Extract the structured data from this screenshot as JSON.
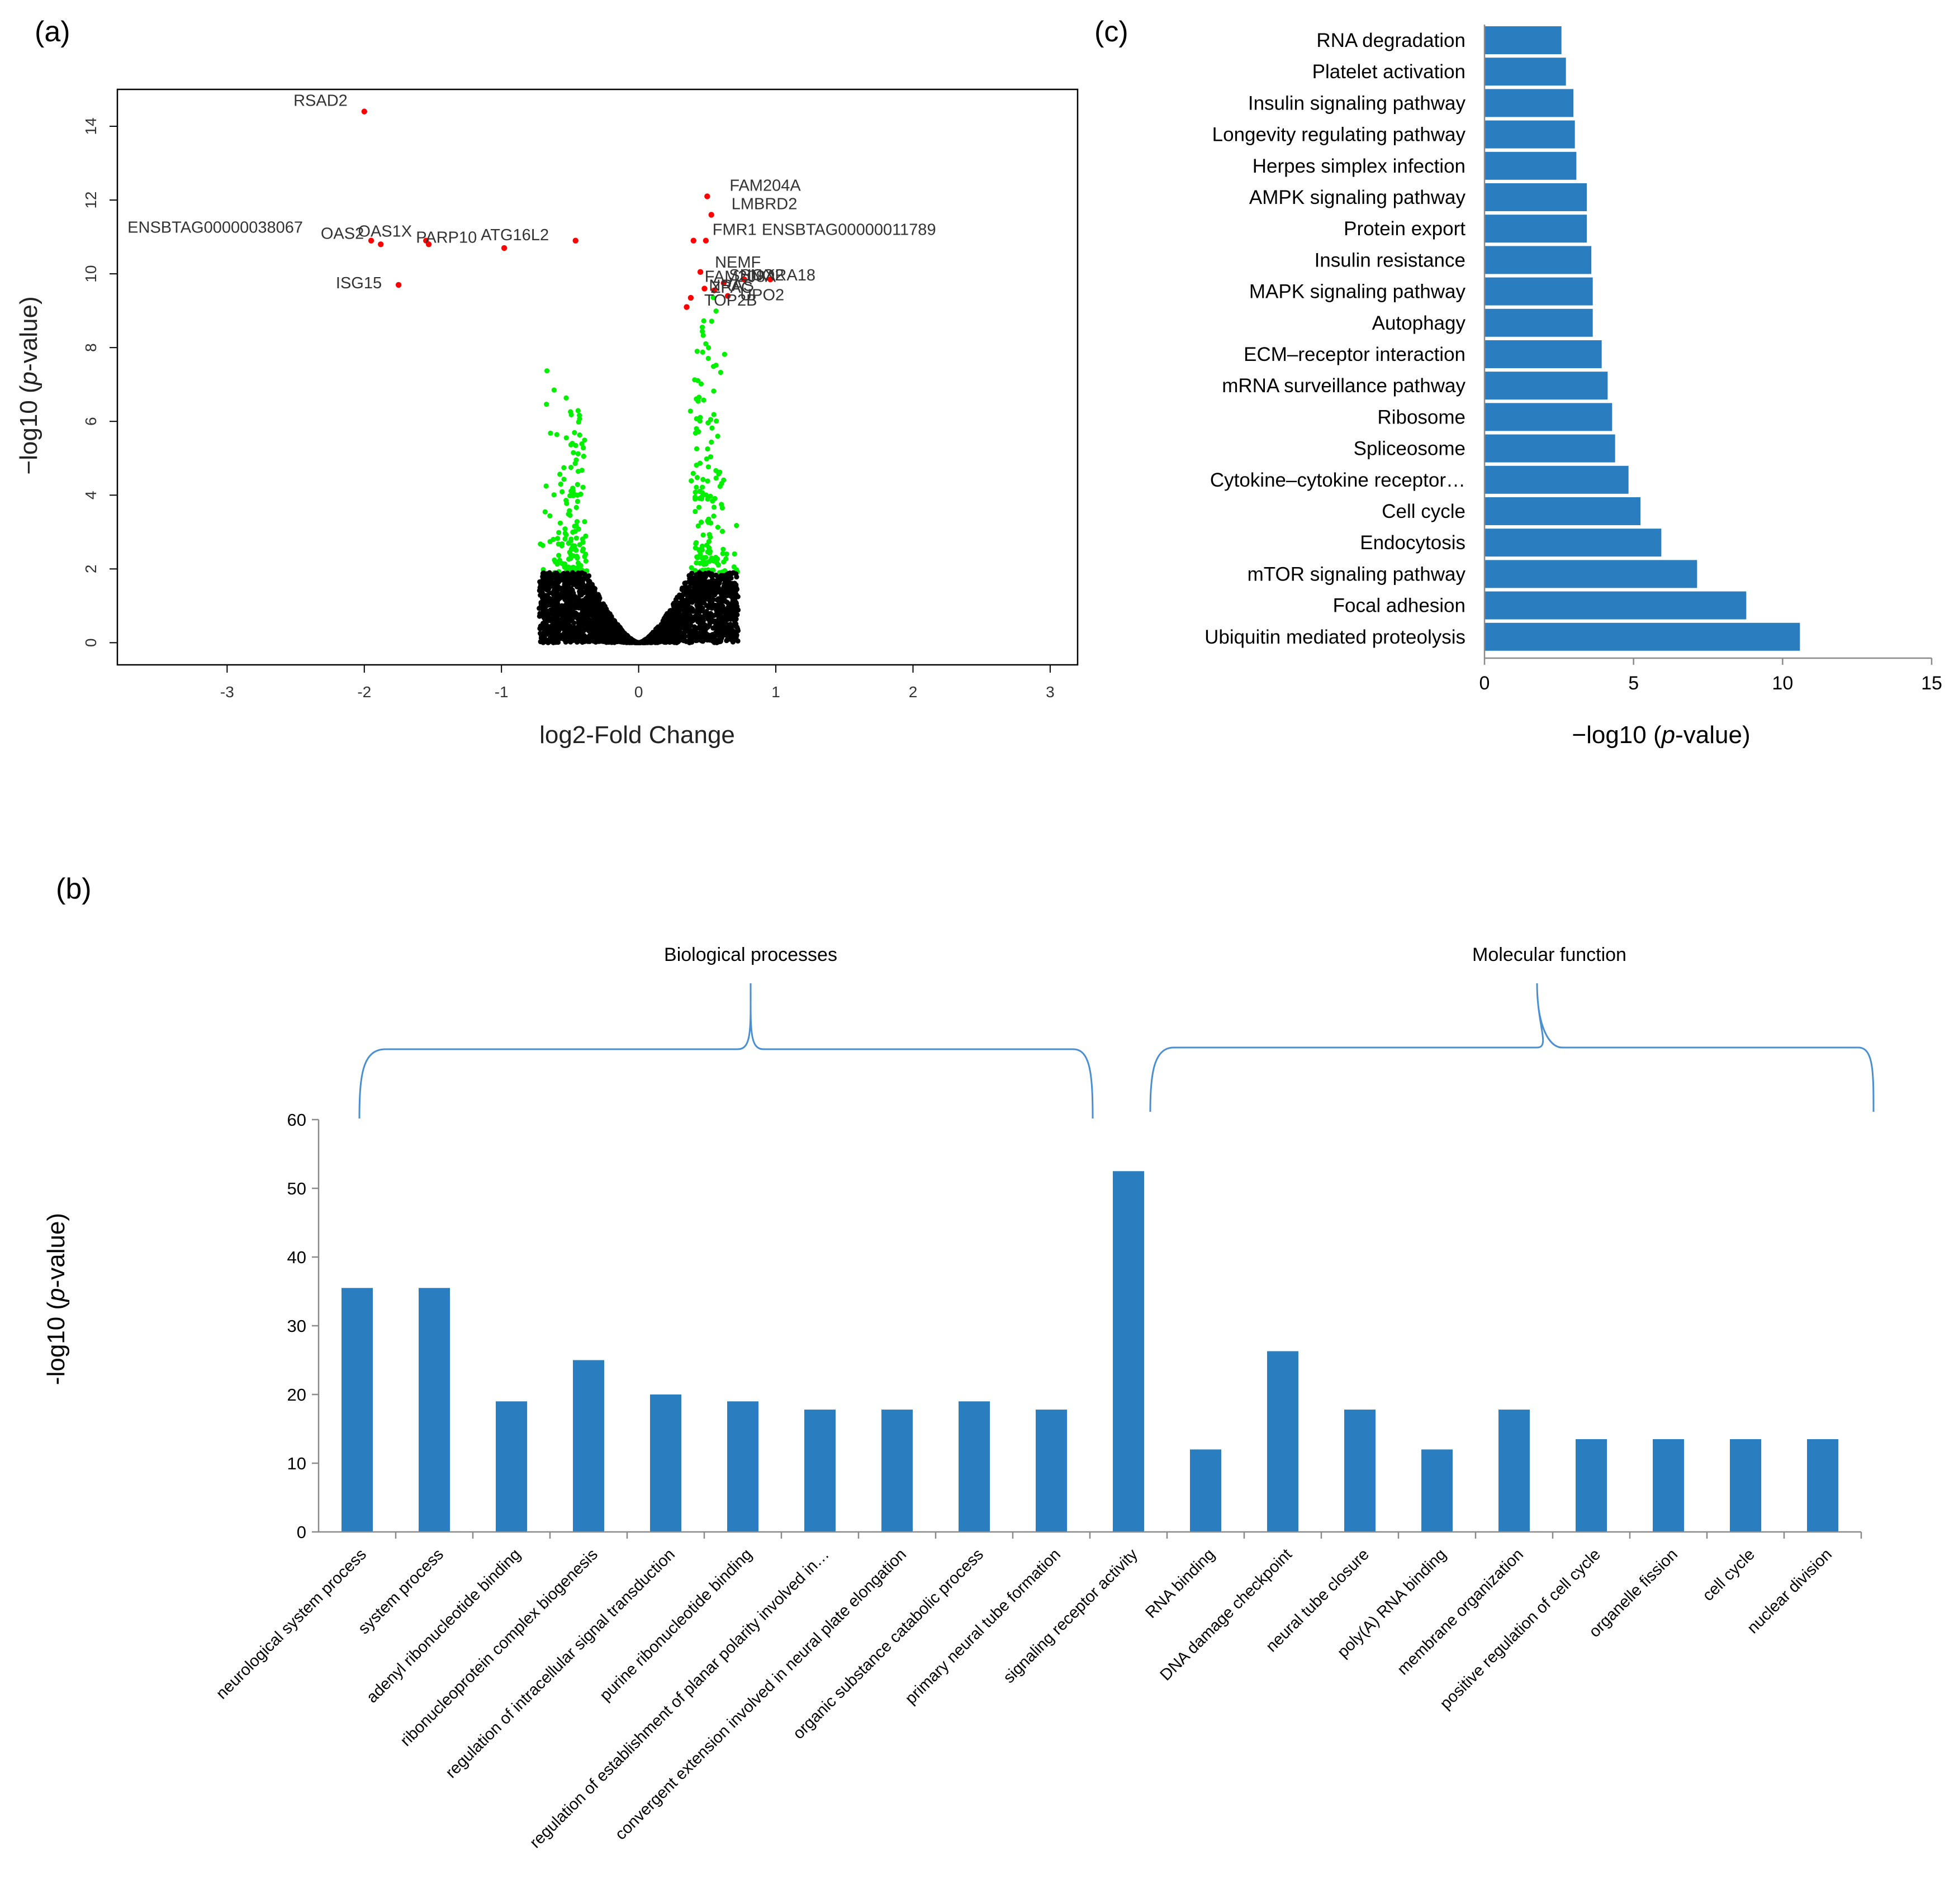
{
  "colors": {
    "bar": "#2a7ebf",
    "bar_stroke": "#ffffff",
    "sig_point": "#ff0000",
    "up_down_point": "#00f000",
    "ns_point": "#000000",
    "bracket": "#4a8fcf",
    "axis": "#000000"
  },
  "panel_labels": {
    "a": "(a)",
    "b": "(b)",
    "c": "(c)"
  },
  "chart_data": [
    {
      "id": "a",
      "type": "scatter",
      "title": "",
      "xlabel": "log2-Fold Change",
      "ylabel_prefix": "−log10 (",
      "ylabel_italic": "p",
      "ylabel_suffix": "-value)",
      "xlim": [
        -3.8,
        3.2
      ],
      "ylim": [
        -0.6,
        15.0
      ],
      "xticks": [
        -3,
        -2,
        -1,
        0,
        1,
        2,
        3
      ],
      "yticks": [
        0,
        2,
        4,
        6,
        8,
        10,
        12,
        14
      ],
      "significance_threshold": 1.9,
      "labeled_points": [
        {
          "gene": "RSAD2",
          "x": -2.0,
          "y": 14.4
        },
        {
          "gene": "FAM204A",
          "x": 0.5,
          "y": 12.1
        },
        {
          "gene": "LMBRD2",
          "x": 0.53,
          "y": 11.6
        },
        {
          "gene": "ENSBTAG00000038067",
          "x": -1.95,
          "y": 10.9
        },
        {
          "gene": "OAS2",
          "x": -1.88,
          "y": 10.8
        },
        {
          "gene": "OAS1X",
          "x": -1.53,
          "y": 10.8
        },
        {
          "gene": "PARP10",
          "x": -1.55,
          "y": 10.9
        },
        {
          "gene": "ATG16L2",
          "x": -0.98,
          "y": 10.7
        },
        {
          "gene": "",
          "x": -0.46,
          "y": 10.9
        },
        {
          "gene": "FMR1",
          "x": 0.4,
          "y": 10.9
        },
        {
          "gene": "ENSBTAG00000011789",
          "x": 0.49,
          "y": 10.9
        },
        {
          "gene": "ISG15",
          "x": -1.75,
          "y": 9.7
        },
        {
          "gene": "NEMF",
          "x": 0.45,
          "y": 10.05
        },
        {
          "gene": "FAM208A",
          "x": 0.62,
          "y": 9.75
        },
        {
          "gene": "SNORA18",
          "x": 0.77,
          "y": 9.85
        },
        {
          "gene": "SHOX2",
          "x": 0.96,
          "y": 9.85
        },
        {
          "gene": "NRAS",
          "x": 0.48,
          "y": 9.6
        },
        {
          "gene": "ZPAC",
          "x": 0.55,
          "y": 9.55
        },
        {
          "gene": "UPO2",
          "x": 0.65,
          "y": 9.4
        },
        {
          "gene": "TOP2B",
          "x": 0.38,
          "y": 9.35
        },
        {
          "gene": "",
          "x": 0.35,
          "y": 9.1
        }
      ]
    },
    {
      "id": "c",
      "type": "bar",
      "orientation": "horizontal",
      "xlabel_prefix": "−log10 (",
      "xlabel_italic": "p",
      "xlabel_suffix": "-value)",
      "xlim": [
        0,
        15
      ],
      "xticks": [
        0,
        5,
        10,
        15
      ],
      "categories": [
        "RNA degradation",
        "Platelet activation",
        "Insulin signaling pathway",
        "Longevity regulating pathway",
        "Herpes simplex infection",
        "AMPK signaling pathway",
        "Protein export",
        "Insulin resistance",
        "MAPK signaling pathway",
        "Autophagy",
        "ECM–receptor interaction",
        "mRNA surveillance pathway",
        "Ribosome",
        "Spliceosome",
        "Cytokine–cytokine receptor…",
        "Cell cycle",
        "Endocytosis",
        "mTOR signaling pathway",
        "Focal adhesion",
        "Ubiquitin mediated proteolysis"
      ],
      "values": [
        2.6,
        2.75,
        3.0,
        3.05,
        3.1,
        3.45,
        3.45,
        3.6,
        3.65,
        3.65,
        3.95,
        4.15,
        4.3,
        4.4,
        4.85,
        5.25,
        5.95,
        7.15,
        8.8,
        10.6
      ]
    },
    {
      "id": "b",
      "type": "bar",
      "ylabel_prefix": "-log10 (",
      "ylabel_italic": "p",
      "ylabel_suffix": "-value)",
      "ylim": [
        0,
        60
      ],
      "yticks": [
        0,
        10,
        20,
        30,
        40,
        50,
        60
      ],
      "groups": [
        {
          "label": "Biological processes"
        },
        {
          "label": "Molecular function"
        }
      ],
      "categories": [
        "neurological system process",
        "system process",
        "adenyl ribonucleotide binding",
        "ribonucleoprotein complex biogenesis",
        "regulation of intracellular signal transduction",
        "purine ribonucleotide binding",
        "regulation of establishment of planar polarity involved in…",
        "convergent extension involved in neural plate elongation",
        "organic substance catabolic process",
        "primary neural tube formation",
        "signaling receptor activity",
        "RNA binding",
        "DNA damage checkpoint",
        "neural tube closure",
        "poly(A) RNA binding",
        "membrane organization",
        "positive regulation of cell cycle",
        "organelle fission",
        "cell cycle",
        "nuclear division"
      ],
      "values": [
        35.5,
        35.5,
        19,
        25,
        20,
        19,
        17.8,
        17.8,
        19,
        17.8,
        52.5,
        12,
        26.3,
        17.8,
        12,
        17.8,
        13.5,
        13.5,
        13.5,
        13.5
      ]
    }
  ]
}
